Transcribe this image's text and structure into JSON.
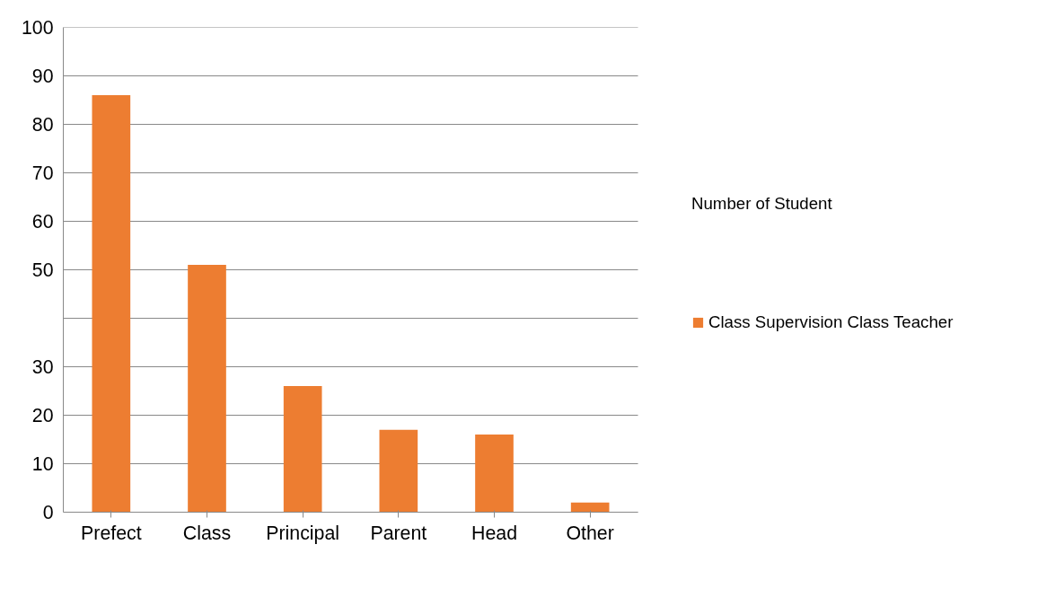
{
  "chart_data": {
    "type": "bar",
    "legend_title": "Number of Student",
    "categories": [
      "Prefect",
      "Class",
      "Principal",
      "Parent",
      "Head",
      "Other"
    ],
    "series": [
      {
        "name": "Class Supervision Class Teacher",
        "color": "#ed7d31",
        "values": [
          86,
          51,
          26,
          17,
          16,
          2
        ]
      }
    ],
    "ylim": [
      0,
      100
    ],
    "yticks": [
      0,
      10,
      20,
      30,
      {
        "value": 40,
        "label": null
      },
      50,
      60,
      70,
      80,
      90,
      100
    ],
    "grid": "y",
    "legend": "right"
  }
}
